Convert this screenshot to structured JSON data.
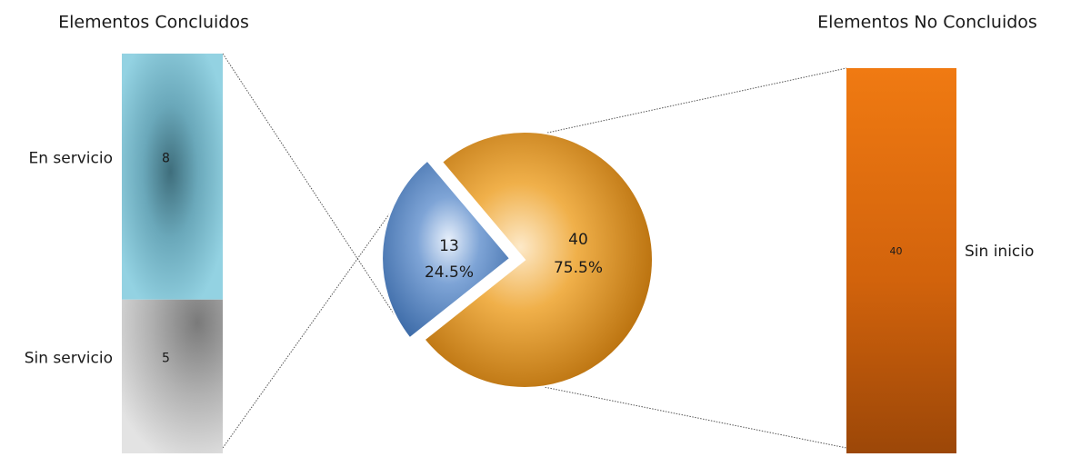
{
  "chart_data": {
    "type": "pie",
    "subtype": "bar-of-pie",
    "pie": {
      "slices": [
        {
          "id": "concluidos",
          "value": 13,
          "percent": "24.5%",
          "color": "#4a7ab8"
        },
        {
          "id": "no_concluidos",
          "value": 40,
          "percent": "75.5%",
          "color": "#e89a1c"
        }
      ]
    },
    "bars": [
      {
        "id": "left",
        "title": "Elementos Concluidos",
        "segments": [
          {
            "label": "En servicio",
            "value": 8,
            "color": "#8fcfe0"
          },
          {
            "label": "Sin servicio",
            "value": 5,
            "color": "#b8b8b8"
          }
        ]
      },
      {
        "id": "right",
        "title": "Elementos No Concluidos",
        "segments": [
          {
            "label": "Sin inicio",
            "value": 40,
            "color": "#e26e10"
          }
        ]
      }
    ]
  }
}
